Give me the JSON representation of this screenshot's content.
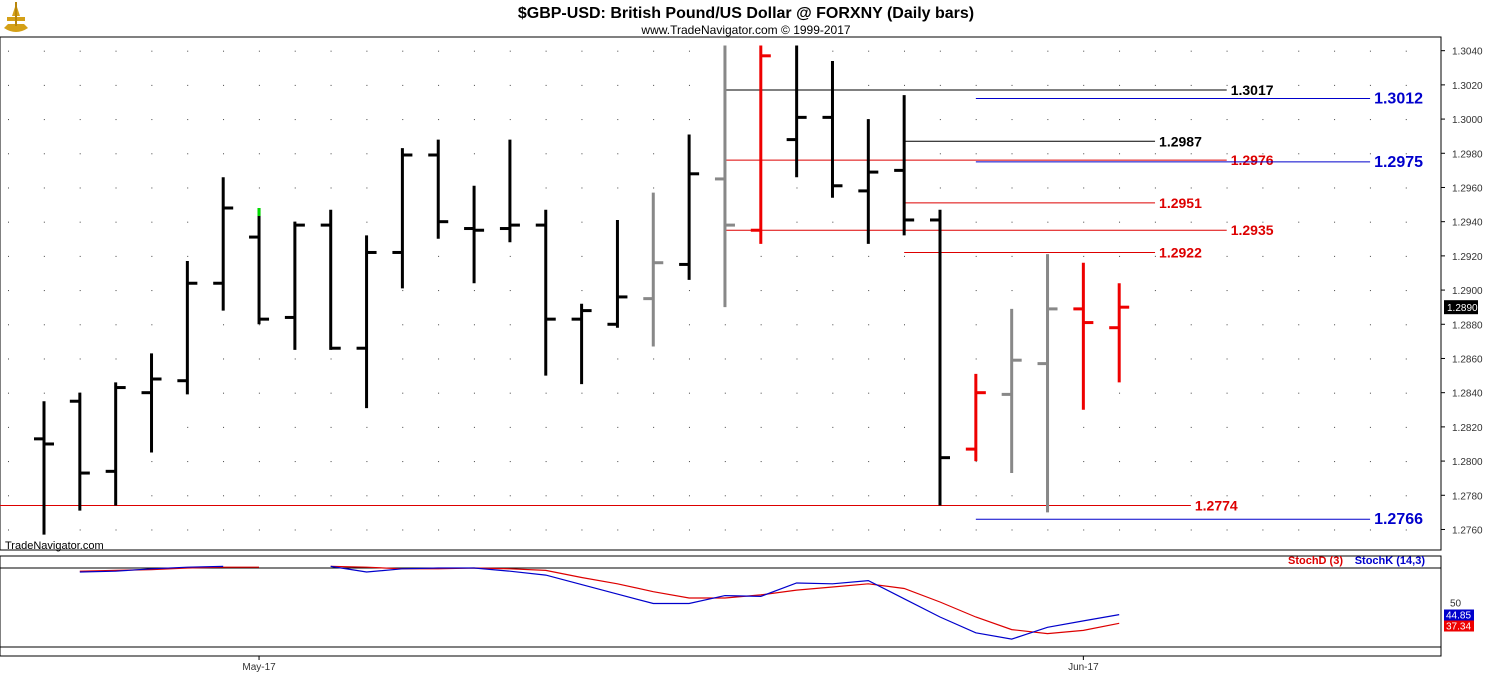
{
  "header": {
    "title": "$GBP-USD:  British Pound/US Dollar @ FORXNY  (Daily bars)",
    "copyright": "www.TradeNavigator.com © 1999-2017",
    "watermark": "TradeNavigator.com",
    "logo": "trade-navigator-logo-icon"
  },
  "colors": {
    "bar_black": "#000000",
    "bar_gray": "#888888",
    "bar_red": "#ee0000",
    "highlight_green": "#00dd00",
    "level_black": "#000000",
    "level_red": "#dd0000",
    "level_blue": "#0000cc",
    "stoch_d": "#dd0000",
    "stoch_k": "#0000cc"
  },
  "chart_data": [
    {
      "type": "ohlc",
      "title": "$GBP-USD:  British Pound/US Dollar @ FORXNY  (Daily bars)",
      "ylim": [
        1.2748,
        1.3048
      ],
      "yticks": [
        "1.3040",
        "1.3020",
        "1.3000",
        "1.2980",
        "1.2960",
        "1.2940",
        "1.2920",
        "1.2900",
        "1.2880",
        "1.2860",
        "1.2840",
        "1.2820",
        "1.2800",
        "1.2780",
        "1.2760"
      ],
      "xticks": [
        {
          "label": "May-17",
          "bar": 6
        },
        {
          "label": "Jun-17",
          "bar": 29
        }
      ],
      "last_price": "1.2890",
      "bars": [
        {
          "o": 1.2813,
          "h": 1.2835,
          "l": 1.2757,
          "c": 1.281,
          "color": "black"
        },
        {
          "o": 1.2835,
          "h": 1.284,
          "l": 1.2771,
          "c": 1.2793,
          "color": "black"
        },
        {
          "o": 1.2794,
          "h": 1.2846,
          "l": 1.2774,
          "c": 1.2843,
          "color": "black"
        },
        {
          "o": 1.284,
          "h": 1.2863,
          "l": 1.2805,
          "c": 1.2848,
          "color": "black"
        },
        {
          "o": 1.2847,
          "h": 1.2917,
          "l": 1.2839,
          "c": 1.2904,
          "color": "black"
        },
        {
          "o": 1.2904,
          "h": 1.2966,
          "l": 1.2888,
          "c": 1.2948,
          "color": "black"
        },
        {
          "o": 1.2931,
          "h": 1.2948,
          "l": 1.288,
          "c": 1.2883,
          "color": "black",
          "high_marker": "green"
        },
        {
          "o": 1.2884,
          "h": 1.294,
          "l": 1.2865,
          "c": 1.2938,
          "color": "black"
        },
        {
          "o": 1.2938,
          "h": 1.2947,
          "l": 1.2865,
          "c": 1.2866,
          "color": "black"
        },
        {
          "o": 1.2866,
          "h": 1.2932,
          "l": 1.2831,
          "c": 1.2922,
          "color": "black"
        },
        {
          "o": 1.2922,
          "h": 1.2983,
          "l": 1.2901,
          "c": 1.2979,
          "color": "black"
        },
        {
          "o": 1.2979,
          "h": 1.2988,
          "l": 1.293,
          "c": 1.294,
          "color": "black"
        },
        {
          "o": 1.2936,
          "h": 1.2961,
          "l": 1.2904,
          "c": 1.2935,
          "color": "black"
        },
        {
          "o": 1.2936,
          "h": 1.2988,
          "l": 1.2928,
          "c": 1.2938,
          "color": "black"
        },
        {
          "o": 1.2938,
          "h": 1.2947,
          "l": 1.285,
          "c": 1.2883,
          "color": "black"
        },
        {
          "o": 1.2883,
          "h": 1.2892,
          "l": 1.2845,
          "c": 1.2888,
          "color": "black"
        },
        {
          "o": 1.288,
          "h": 1.2941,
          "l": 1.2878,
          "c": 1.2896,
          "color": "black"
        },
        {
          "o": 1.2895,
          "h": 1.2957,
          "l": 1.2867,
          "c": 1.2916,
          "color": "gray"
        },
        {
          "o": 1.2915,
          "h": 1.2991,
          "l": 1.2906,
          "c": 1.2968,
          "color": "black"
        },
        {
          "o": 1.2965,
          "h": 1.3043,
          "l": 1.289,
          "c": 1.2938,
          "color": "gray"
        },
        {
          "o": 1.2935,
          "h": 1.3043,
          "l": 1.2927,
          "c": 1.3037,
          "color": "red"
        },
        {
          "o": 1.2988,
          "h": 1.3043,
          "l": 1.2966,
          "c": 1.3001,
          "color": "black"
        },
        {
          "o": 1.3001,
          "h": 1.3034,
          "l": 1.2954,
          "c": 1.2961,
          "color": "black"
        },
        {
          "o": 1.2958,
          "h": 1.3,
          "l": 1.2927,
          "c": 1.2969,
          "color": "black"
        },
        {
          "o": 1.297,
          "h": 1.3014,
          "l": 1.2932,
          "c": 1.2941,
          "color": "black"
        },
        {
          "o": 1.2941,
          "h": 1.2947,
          "l": 1.2774,
          "c": 1.2802,
          "color": "black"
        },
        {
          "o": 1.2807,
          "h": 1.2851,
          "l": 1.28,
          "c": 1.284,
          "color": "red"
        },
        {
          "o": 1.2839,
          "h": 1.2889,
          "l": 1.2793,
          "c": 1.2859,
          "color": "gray"
        },
        {
          "o": 1.2857,
          "h": 1.2921,
          "l": 1.277,
          "c": 1.2889,
          "color": "gray"
        },
        {
          "o": 1.2889,
          "h": 1.2916,
          "l": 1.283,
          "c": 1.2881,
          "color": "red"
        },
        {
          "o": 1.2878,
          "h": 1.2904,
          "l": 1.2846,
          "c": 1.289,
          "color": "red"
        }
      ],
      "levels": [
        {
          "value": "1.3017",
          "color": "black",
          "from_bar": 19,
          "to_bar": 33
        },
        {
          "value": "1.3012",
          "color": "blue",
          "from_bar": 26,
          "to_bar": 37
        },
        {
          "value": "1.2987",
          "color": "black",
          "from_bar": 24,
          "to_bar": 31
        },
        {
          "value": "1.2976",
          "color": "red",
          "from_bar": 19,
          "to_bar": 33
        },
        {
          "value": "1.2975",
          "color": "blue",
          "from_bar": 26,
          "to_bar": 37
        },
        {
          "value": "1.2951",
          "color": "red",
          "from_bar": 24,
          "to_bar": 31
        },
        {
          "value": "1.2935",
          "color": "red",
          "from_bar": 19,
          "to_bar": 33
        },
        {
          "value": "1.2922",
          "color": "red",
          "from_bar": 24,
          "to_bar": 31
        },
        {
          "value": "1.2774",
          "color": "red",
          "from_bar": -1,
          "to_bar": 32
        },
        {
          "value": "1.2766",
          "color": "blue",
          "from_bar": 26,
          "to_bar": 37
        }
      ]
    },
    {
      "type": "line",
      "legend": [
        {
          "label": "StochD (3)",
          "color": "red"
        },
        {
          "label": "StochK (14,3)",
          "color": "blue"
        }
      ],
      "ylim": [
        0,
        100
      ],
      "reference_line": "50",
      "last_values": {
        "stoch_k": "44.85",
        "stoch_d": "37.34"
      },
      "series": [
        {
          "name": "StochD (3)",
          "values": [
            null,
            96,
            97,
            98,
            100,
            101,
            101,
            null,
            102,
            101,
            99,
            99,
            100,
            99,
            97,
            88,
            80,
            70,
            62,
            62,
            66,
            72,
            76,
            80,
            74,
            57,
            38,
            22,
            17,
            21,
            30
          ]
        },
        {
          "name": "StochK (14,3)",
          "values": [
            null,
            95,
            96,
            99,
            101,
            102,
            null,
            null,
            102,
            95,
            99,
            100,
            100,
            96,
            91,
            79,
            67,
            55,
            55,
            65,
            64,
            81,
            80,
            84,
            61,
            38,
            18,
            10,
            25,
            33,
            41
          ]
        }
      ]
    }
  ]
}
